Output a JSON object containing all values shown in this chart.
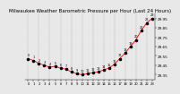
{
  "title": "Milwaukee Weather Barometric Pressure per Hour (Last 24 Hours)",
  "bg_color": "#e8e8e8",
  "plot_bg": "#e8e8e8",
  "line_color": "#ff0000",
  "dot_color": "#000000",
  "grid_color": "#aaaaaa",
  "hours": [
    0,
    1,
    2,
    3,
    4,
    5,
    6,
    7,
    8,
    9,
    10,
    11,
    12,
    13,
    14,
    15,
    16,
    17,
    18,
    19,
    20,
    21,
    22,
    23
  ],
  "pressure": [
    29.52,
    29.5,
    29.47,
    29.45,
    29.43,
    29.44,
    29.42,
    29.41,
    29.38,
    29.36,
    29.35,
    29.36,
    29.37,
    29.38,
    29.4,
    29.42,
    29.46,
    29.52,
    29.58,
    29.65,
    29.72,
    29.82,
    29.9,
    29.95
  ],
  "ylim_min": 29.3,
  "ylim_max": 30.0,
  "yticks": [
    29.35,
    29.45,
    29.55,
    29.65,
    29.75,
    29.85,
    29.95
  ],
  "title_fontsize": 4.0,
  "tick_fontsize": 3.0,
  "dot_size": 2.5,
  "linewidth": 0.6,
  "label_fontsize": 2.5
}
